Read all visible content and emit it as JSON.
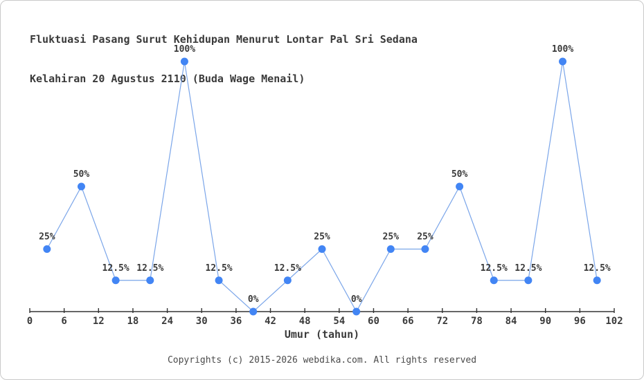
{
  "window": {
    "title_line1": "Fluktuasi Pasang Surut Kehidupan Menurut Lontar Pal Sri Sedana",
    "title_line2": "Kelahiran 20 Agustus 2110 (Buda Wage Menail)"
  },
  "footer": {
    "copyright": "Copyrights (c) 2015-2026 webdika.com. All rights reserved"
  },
  "chart_data": {
    "type": "line",
    "title": "Fluktuasi Pasang Surut Kehidupan Menurut Lontar Pal Sri Sedana Kelahiran 20 Agustus 2110 (Buda Wage Menail)",
    "xlabel": "Umur (tahun)",
    "ylabel": "",
    "x": [
      3,
      9,
      15,
      21,
      27,
      33,
      39,
      45,
      51,
      57,
      63,
      69,
      75,
      81,
      87,
      93,
      99
    ],
    "values": [
      25,
      50,
      12.5,
      12.5,
      100,
      12.5,
      0,
      12.5,
      25,
      0,
      25,
      25,
      50,
      12.5,
      12.5,
      100,
      12.5
    ],
    "point_labels": [
      "25%",
      "50%",
      "12.5%",
      "12.5%",
      "100%",
      "12.5%",
      "0%",
      "12.5%",
      "25%",
      "0%",
      "25%",
      "25%",
      "50%",
      "12.5%",
      "12.5%",
      "100%",
      "12.5%"
    ],
    "x_ticks": [
      0,
      6,
      12,
      18,
      24,
      30,
      36,
      42,
      48,
      54,
      60,
      66,
      72,
      78,
      84,
      90,
      96,
      102
    ],
    "xlim": [
      0,
      102
    ],
    "ylim": [
      0,
      100
    ],
    "grid": false,
    "legend": false,
    "colors": {
      "marker": "#4285f4",
      "line": "#7aa5e9",
      "text": "#3a3a3a",
      "axis": "#333333"
    }
  }
}
